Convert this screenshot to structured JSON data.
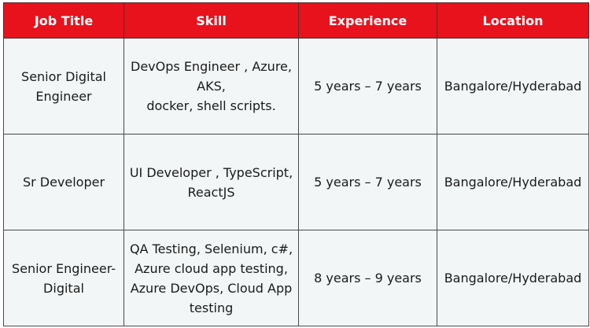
{
  "table": {
    "headers": [
      "Job Title",
      "Skill",
      "Experience",
      "Location"
    ],
    "rows": [
      {
        "title": [
          "Senior Digital",
          "Engineer"
        ],
        "skill": [
          "DevOps Engineer , Azure,",
          "AKS,",
          "docker, shell scripts."
        ],
        "experience": "5 years – 7 years",
        "location": "Bangalore/Hyderabad"
      },
      {
        "title": [
          "Sr Developer"
        ],
        "skill": [
          "UI Developer , TypeScript,",
          "ReactJS"
        ],
        "experience": "5 years – 7 years",
        "location": "Bangalore/Hyderabad"
      },
      {
        "title": [
          "Senior Engineer-",
          "Digital"
        ],
        "skill": [
          "QA Testing, Selenium, c#,",
          "Azure cloud app testing,",
          "Azure DevOps, Cloud App",
          "testing"
        ],
        "experience": "8 years – 9 years",
        "location": "Bangalore/Hyderabad"
      }
    ],
    "colors": {
      "header_bg": "#e8121d",
      "header_text": "#ffffff",
      "cell_bg": "#f2f6f6",
      "border": "#4a4a4a"
    }
  }
}
